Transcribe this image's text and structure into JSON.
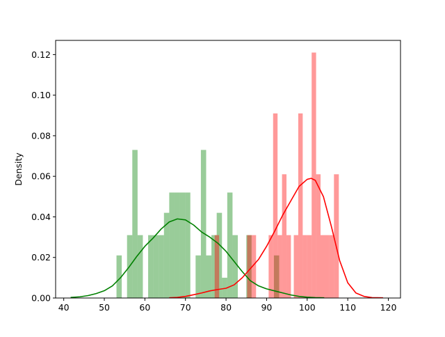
{
  "chart_data": {
    "type": "histogram+kde",
    "title": "",
    "xlabel": "",
    "ylabel": "Density",
    "xlim": [
      38,
      123
    ],
    "ylim": [
      0,
      0.127
    ],
    "x_ticks": [
      40,
      50,
      60,
      70,
      80,
      90,
      100,
      110,
      120
    ],
    "y_ticks": [
      0.0,
      0.02,
      0.04,
      0.06,
      0.08,
      0.1,
      0.12
    ],
    "grid": false,
    "legend": "none",
    "series": [
      {
        "color": "#008000",
        "bar_alpha": 0.4,
        "bins": [
          {
            "x0": 53.0,
            "x1": 54.3,
            "density": 0.021
          },
          {
            "x0": 55.6,
            "x1": 56.9,
            "density": 0.031
          },
          {
            "x0": 56.9,
            "x1": 58.2,
            "density": 0.073
          },
          {
            "x0": 58.2,
            "x1": 59.5,
            "density": 0.031
          },
          {
            "x0": 60.8,
            "x1": 62.1,
            "density": 0.031
          },
          {
            "x0": 62.1,
            "x1": 63.4,
            "density": 0.031
          },
          {
            "x0": 63.4,
            "x1": 64.7,
            "density": 0.031
          },
          {
            "x0": 64.7,
            "x1": 66.0,
            "density": 0.042
          },
          {
            "x0": 66.0,
            "x1": 67.3,
            "density": 0.052
          },
          {
            "x0": 67.3,
            "x1": 68.6,
            "density": 0.052
          },
          {
            "x0": 68.6,
            "x1": 69.9,
            "density": 0.052
          },
          {
            "x0": 69.9,
            "x1": 71.2,
            "density": 0.052
          },
          {
            "x0": 72.5,
            "x1": 73.8,
            "density": 0.021
          },
          {
            "x0": 73.8,
            "x1": 75.1,
            "density": 0.073
          },
          {
            "x0": 75.1,
            "x1": 76.4,
            "density": 0.021
          },
          {
            "x0": 76.4,
            "x1": 77.7,
            "density": 0.031
          },
          {
            "x0": 77.7,
            "x1": 79.0,
            "density": 0.042
          },
          {
            "x0": 79.0,
            "x1": 80.3,
            "density": 0.01
          },
          {
            "x0": 80.3,
            "x1": 81.6,
            "density": 0.052
          },
          {
            "x0": 81.6,
            "x1": 82.9,
            "density": 0.031
          },
          {
            "x0": 85.0,
            "x1": 86.3,
            "density": 0.031
          },
          {
            "x0": 91.8,
            "x1": 93.1,
            "density": 0.021
          }
        ],
        "kde": {
          "x": [
            41.7,
            44,
            46,
            48,
            50,
            52,
            54,
            56,
            58,
            60,
            62,
            64,
            66,
            68,
            70,
            72,
            74,
            76,
            78,
            80,
            82,
            84,
            86,
            88,
            90,
            92,
            94,
            96,
            98,
            100,
            102,
            104.2
          ],
          "y": [
            0.0003,
            0.0006,
            0.0012,
            0.0022,
            0.0036,
            0.006,
            0.01,
            0.015,
            0.0205,
            0.0255,
            0.0295,
            0.034,
            0.0375,
            0.039,
            0.0385,
            0.036,
            0.0325,
            0.03,
            0.027,
            0.023,
            0.018,
            0.013,
            0.0085,
            0.006,
            0.0045,
            0.0035,
            0.0025,
            0.0015,
            0.0008,
            0.0004,
            0.0002,
            0.0001
          ]
        }
      },
      {
        "color": "#ff0000",
        "bar_alpha": 0.4,
        "bins": [
          {
            "x0": 77.2,
            "x1": 78.3,
            "density": 0.031
          },
          {
            "x0": 85.2,
            "x1": 86.3,
            "density": 0.031
          },
          {
            "x0": 86.3,
            "x1": 87.4,
            "density": 0.031
          },
          {
            "x0": 90.5,
            "x1": 91.6,
            "density": 0.031
          },
          {
            "x0": 91.6,
            "x1": 92.7,
            "density": 0.091
          },
          {
            "x0": 92.7,
            "x1": 93.8,
            "density": 0.031
          },
          {
            "x0": 93.8,
            "x1": 94.9,
            "density": 0.061
          },
          {
            "x0": 94.9,
            "x1": 96.0,
            "density": 0.031
          },
          {
            "x0": 96.7,
            "x1": 97.8,
            "density": 0.031
          },
          {
            "x0": 97.8,
            "x1": 98.9,
            "density": 0.091
          },
          {
            "x0": 98.9,
            "x1": 100.0,
            "density": 0.031
          },
          {
            "x0": 100.0,
            "x1": 101.1,
            "density": 0.031
          },
          {
            "x0": 101.1,
            "x1": 102.2,
            "density": 0.121
          },
          {
            "x0": 102.2,
            "x1": 103.3,
            "density": 0.061
          },
          {
            "x0": 103.3,
            "x1": 104.4,
            "density": 0.031
          },
          {
            "x0": 104.4,
            "x1": 105.5,
            "density": 0.031
          },
          {
            "x0": 105.5,
            "x1": 106.6,
            "density": 0.031
          },
          {
            "x0": 106.6,
            "x1": 107.8,
            "density": 0.061
          }
        ],
        "kde": {
          "x": [
            66,
            68,
            70,
            72,
            74,
            76,
            78,
            80,
            82,
            84,
            86,
            88,
            90,
            92,
            94,
            96,
            98,
            100,
            101,
            102,
            104,
            106,
            108,
            110,
            112,
            114,
            116,
            118.7
          ],
          "y": [
            0.0001,
            0.0003,
            0.0008,
            0.0016,
            0.0025,
            0.0035,
            0.0042,
            0.0048,
            0.0065,
            0.01,
            0.0145,
            0.019,
            0.0255,
            0.033,
            0.041,
            0.048,
            0.055,
            0.0585,
            0.059,
            0.058,
            0.05,
            0.035,
            0.0185,
            0.0075,
            0.0025,
            0.0008,
            0.0002,
            0.0001
          ]
        }
      }
    ]
  }
}
